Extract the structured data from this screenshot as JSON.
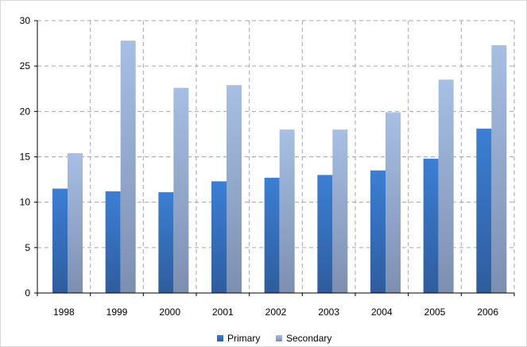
{
  "chart_data": {
    "type": "bar",
    "title": "",
    "xlabel": "",
    "ylabel": "",
    "categories": [
      "1998",
      "1999",
      "2000",
      "2001",
      "2002",
      "2003",
      "2004",
      "2005",
      "2006"
    ],
    "ylim": [
      0,
      30
    ],
    "yticks": [
      0,
      5,
      10,
      15,
      20,
      25,
      30
    ],
    "grid": true,
    "legend_position": "bottom",
    "series": [
      {
        "name": "Primary",
        "color_top": "#3b7fd4",
        "color_bottom": "#2e5d9e",
        "values": [
          11.5,
          11.2,
          11.1,
          12.3,
          12.7,
          13.0,
          13.5,
          14.8,
          18.1
        ]
      },
      {
        "name": "Secondary",
        "color_top": "#a6bfe3",
        "color_bottom": "#7d8fb0",
        "values": [
          15.4,
          27.8,
          22.6,
          22.9,
          18.0,
          18.0,
          19.9,
          23.5,
          27.3
        ]
      }
    ]
  }
}
